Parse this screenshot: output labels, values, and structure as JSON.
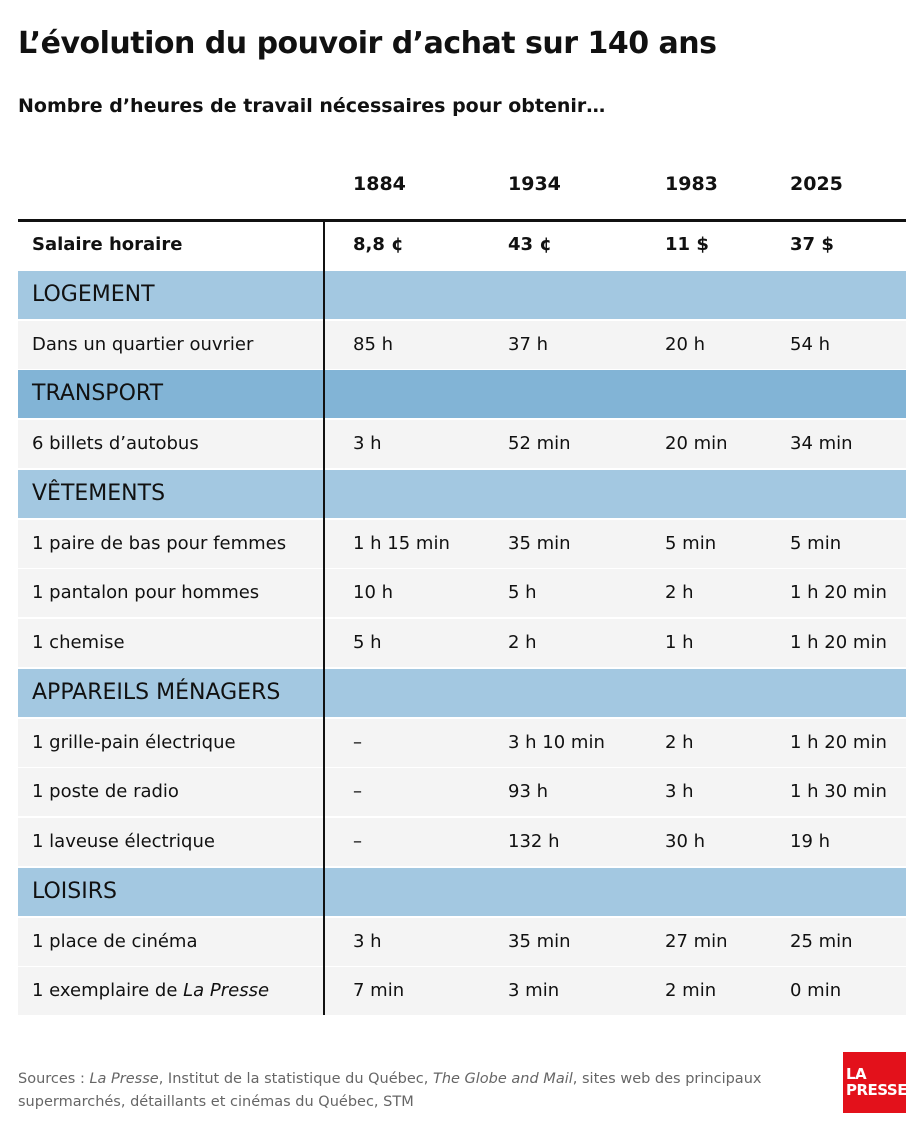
{
  "title": "L’évolution du pouvoir d’achat sur 140 ans",
  "subtitle": "Nombre d’heures de travail nécessaires pour obtenir…",
  "table": {
    "columns": [
      "1884",
      "1934",
      "1983",
      "2025"
    ],
    "salary": {
      "label": "Salaire horaire",
      "values": [
        "8,8 ¢",
        "43 ¢",
        "11 $",
        "37 $"
      ]
    },
    "sections": [
      {
        "name": "LOGEMENT",
        "color": "#a3c8e1",
        "rows": [
          {
            "label": [
              "Dans un quartier ouvrier"
            ],
            "values": [
              "85 h",
              "37 h",
              "20 h",
              "54 h"
            ]
          }
        ]
      },
      {
        "name": "TRANSPORT",
        "color": "#82b4d6",
        "rows": [
          {
            "label": [
              "6 billets d’autobus"
            ],
            "values": [
              "3 h",
              "52 min",
              "20 min",
              "34 min"
            ]
          }
        ]
      },
      {
        "name": "VÊTEMENTS",
        "color": "#a3c8e1",
        "rows": [
          {
            "label": [
              "1 paire de bas pour femmes"
            ],
            "values": [
              "1 h 15 min",
              "35 min",
              "5 min",
              "5 min"
            ]
          },
          {
            "label": [
              "1 pantalon pour hommes"
            ],
            "values": [
              "10 h",
              "5 h",
              "2 h",
              "1 h 20 min"
            ]
          },
          {
            "label": [
              "1 chemise"
            ],
            "values": [
              "5 h",
              "2 h",
              "1 h",
              "1 h 20 min"
            ]
          }
        ]
      },
      {
        "name": "APPAREILS MÉNAGERS",
        "color": "#a3c8e1",
        "rows": [
          {
            "label": [
              "1 grille-pain électrique"
            ],
            "values": [
              "–",
              "3 h 10 min",
              "2 h",
              "1 h 20 min"
            ]
          },
          {
            "label": [
              "1 poste de radio"
            ],
            "values": [
              "–",
              "93 h",
              "3 h",
              "1 h 30 min"
            ]
          },
          {
            "label": [
              "1 laveuse électrique"
            ],
            "values": [
              "–",
              "132 h",
              "30 h",
              "19 h"
            ]
          }
        ]
      },
      {
        "name": "LOISIRS",
        "color": "#a3c8e1",
        "rows": [
          {
            "label": [
              "1 place de cinéma"
            ],
            "values": [
              "3 h",
              "35 min",
              "27 min",
              "25 min"
            ]
          },
          {
            "label": [
              "1 exemplaire de ",
              "La Presse"
            ],
            "values": [
              "7 min",
              "3 min",
              "2 min",
              "0 min"
            ]
          }
        ]
      }
    ]
  },
  "sources": [
    "Sources : ",
    "La Presse",
    ", Institut de la statistique du Québec, ",
    "The Globe and Mail",
    ", sites web des principaux supermarchés, détaillants et cinémas du Québec, STM"
  ],
  "logo": [
    "LA",
    "PRESSE"
  ]
}
